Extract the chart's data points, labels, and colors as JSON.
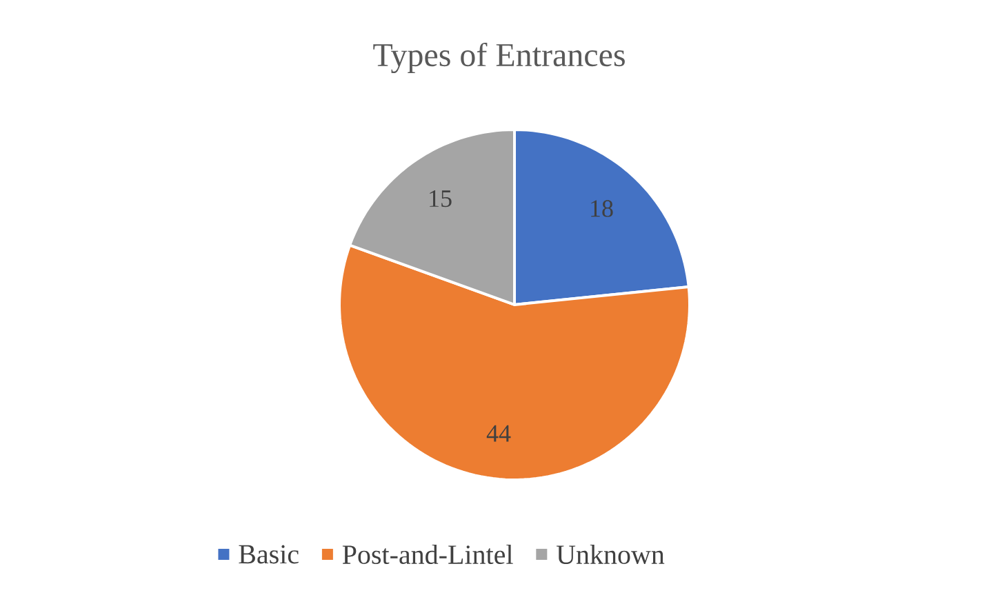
{
  "chart_data": {
    "type": "pie",
    "title": "Types of Entrances",
    "categories": [
      "Basic",
      "Post-and-Lintel",
      "Unknown"
    ],
    "values": [
      18,
      44,
      15
    ],
    "colors": [
      "#4472c4",
      "#ed7d31",
      "#a5a5a5"
    ],
    "data_labels": true,
    "legend": "bottom"
  }
}
